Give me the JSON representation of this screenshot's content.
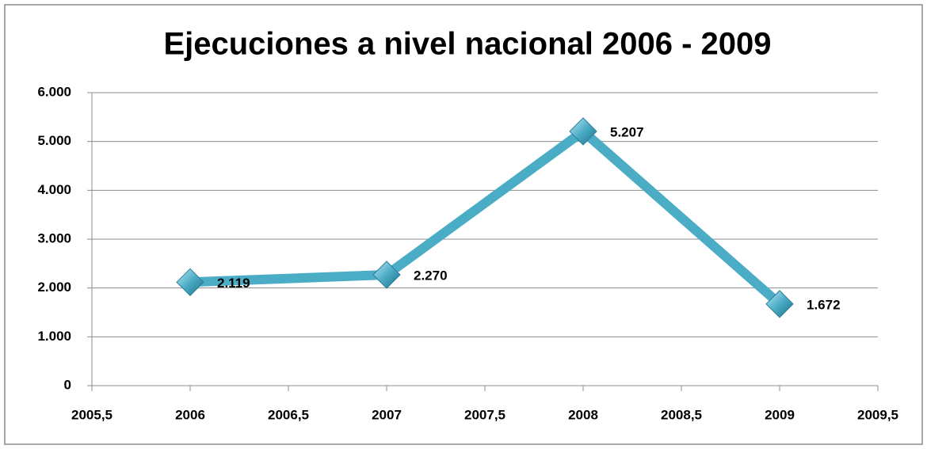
{
  "chart_data": {
    "type": "line",
    "title": "Ejecuciones a nivel nacional 2006 - 2009",
    "x": [
      2006,
      2007,
      2008,
      2009
    ],
    "values": [
      2119,
      2270,
      5207,
      1672
    ],
    "value_labels": [
      "2.119",
      "2.270",
      "5.207",
      "1.672"
    ],
    "color": "#4bacc6",
    "xlim": [
      2005.5,
      2009.5
    ],
    "xticks": [
      {
        "value": 2005.5,
        "label": "2005,5"
      },
      2006,
      {
        "value": 2006.5,
        "label": "2006,5"
      },
      2007,
      {
        "value": 2007.5,
        "label": "2007,5"
      },
      2008,
      {
        "value": 2008.5,
        "label": "2008,5"
      },
      2009,
      {
        "value": 2009.5,
        "label": "2009,5"
      }
    ],
    "ylim": [
      0,
      6000
    ],
    "yticks": [
      0,
      {
        "value": 1000,
        "label": "1.000"
      },
      {
        "value": 2000,
        "label": "2.000"
      },
      {
        "value": 3000,
        "label": "3.000"
      },
      {
        "value": 4000,
        "label": "4.000"
      },
      {
        "value": 5000,
        "label": "5.000"
      },
      {
        "value": 6000,
        "label": "6.000"
      }
    ],
    "grid": true
  }
}
